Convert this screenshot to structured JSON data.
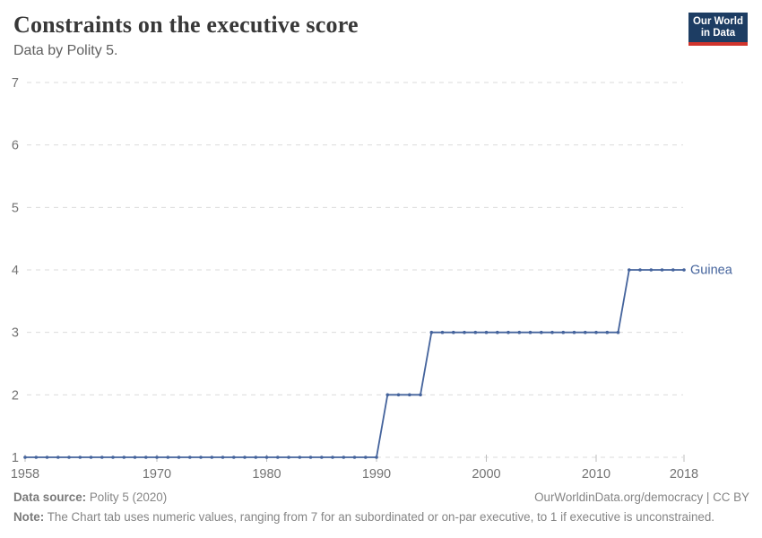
{
  "header": {
    "title": "Constraints on the executive score",
    "subtitle": "Data by Polity 5.",
    "logo": {
      "line1": "Our World",
      "line2": "in Data",
      "bg_color": "#1d3d63",
      "stripe_color": "#d0342c"
    }
  },
  "chart_data": {
    "type": "line",
    "title": "Constraints on the executive score",
    "subtitle": "Data by Polity 5.",
    "xlabel": "",
    "ylabel": "",
    "xlim": [
      1958,
      2018
    ],
    "ylim": [
      1,
      7
    ],
    "x_ticks": [
      1958,
      1970,
      1980,
      1990,
      2000,
      2010,
      2018
    ],
    "y_ticks": [
      1,
      2,
      3,
      4,
      5,
      6,
      7
    ],
    "grid": "horizontal dashed",
    "grid_color": "#dbdbdb",
    "tick_label_color": "#737373",
    "tick_mark_color": "#bdbdbd",
    "legend_position": "end-of-line label",
    "x": [
      1958,
      1959,
      1960,
      1961,
      1962,
      1963,
      1964,
      1965,
      1966,
      1967,
      1968,
      1969,
      1970,
      1971,
      1972,
      1973,
      1974,
      1975,
      1976,
      1977,
      1978,
      1979,
      1980,
      1981,
      1982,
      1983,
      1984,
      1985,
      1986,
      1987,
      1988,
      1989,
      1990,
      1991,
      1992,
      1993,
      1994,
      1995,
      1996,
      1997,
      1998,
      1999,
      2000,
      2001,
      2002,
      2003,
      2004,
      2005,
      2006,
      2007,
      2008,
      2009,
      2010,
      2011,
      2012,
      2013,
      2014,
      2015,
      2016,
      2017,
      2018
    ],
    "series": [
      {
        "name": "Guinea",
        "color": "#44639c",
        "values": [
          1,
          1,
          1,
          1,
          1,
          1,
          1,
          1,
          1,
          1,
          1,
          1,
          1,
          1,
          1,
          1,
          1,
          1,
          1,
          1,
          1,
          1,
          1,
          1,
          1,
          1,
          1,
          1,
          1,
          1,
          1,
          1,
          1,
          2,
          2,
          2,
          2,
          3,
          3,
          3,
          3,
          3,
          3,
          3,
          3,
          3,
          3,
          3,
          3,
          3,
          3,
          3,
          3,
          3,
          3,
          4,
          4,
          4,
          4,
          4,
          4
        ]
      }
    ]
  },
  "footer": {
    "datasource_label": "Data source:",
    "datasource_value": "Polity 5 (2020)",
    "link": "OurWorldinData.org/democracy | CC BY",
    "note_label": "Note:",
    "note_value": "The Chart tab uses numeric values, ranging from 7 for an subordinated or on-par executive, to 1 if executive is unconstrained."
  },
  "colors": {
    "line": "#44639c",
    "grid": "#dbdbdb",
    "axis_labels": "#737373",
    "title": "#383838",
    "subtitle": "#5f5f5f",
    "footer": "#858585",
    "logo_bg": "#1d3d63",
    "logo_stripe": "#d0342c"
  }
}
